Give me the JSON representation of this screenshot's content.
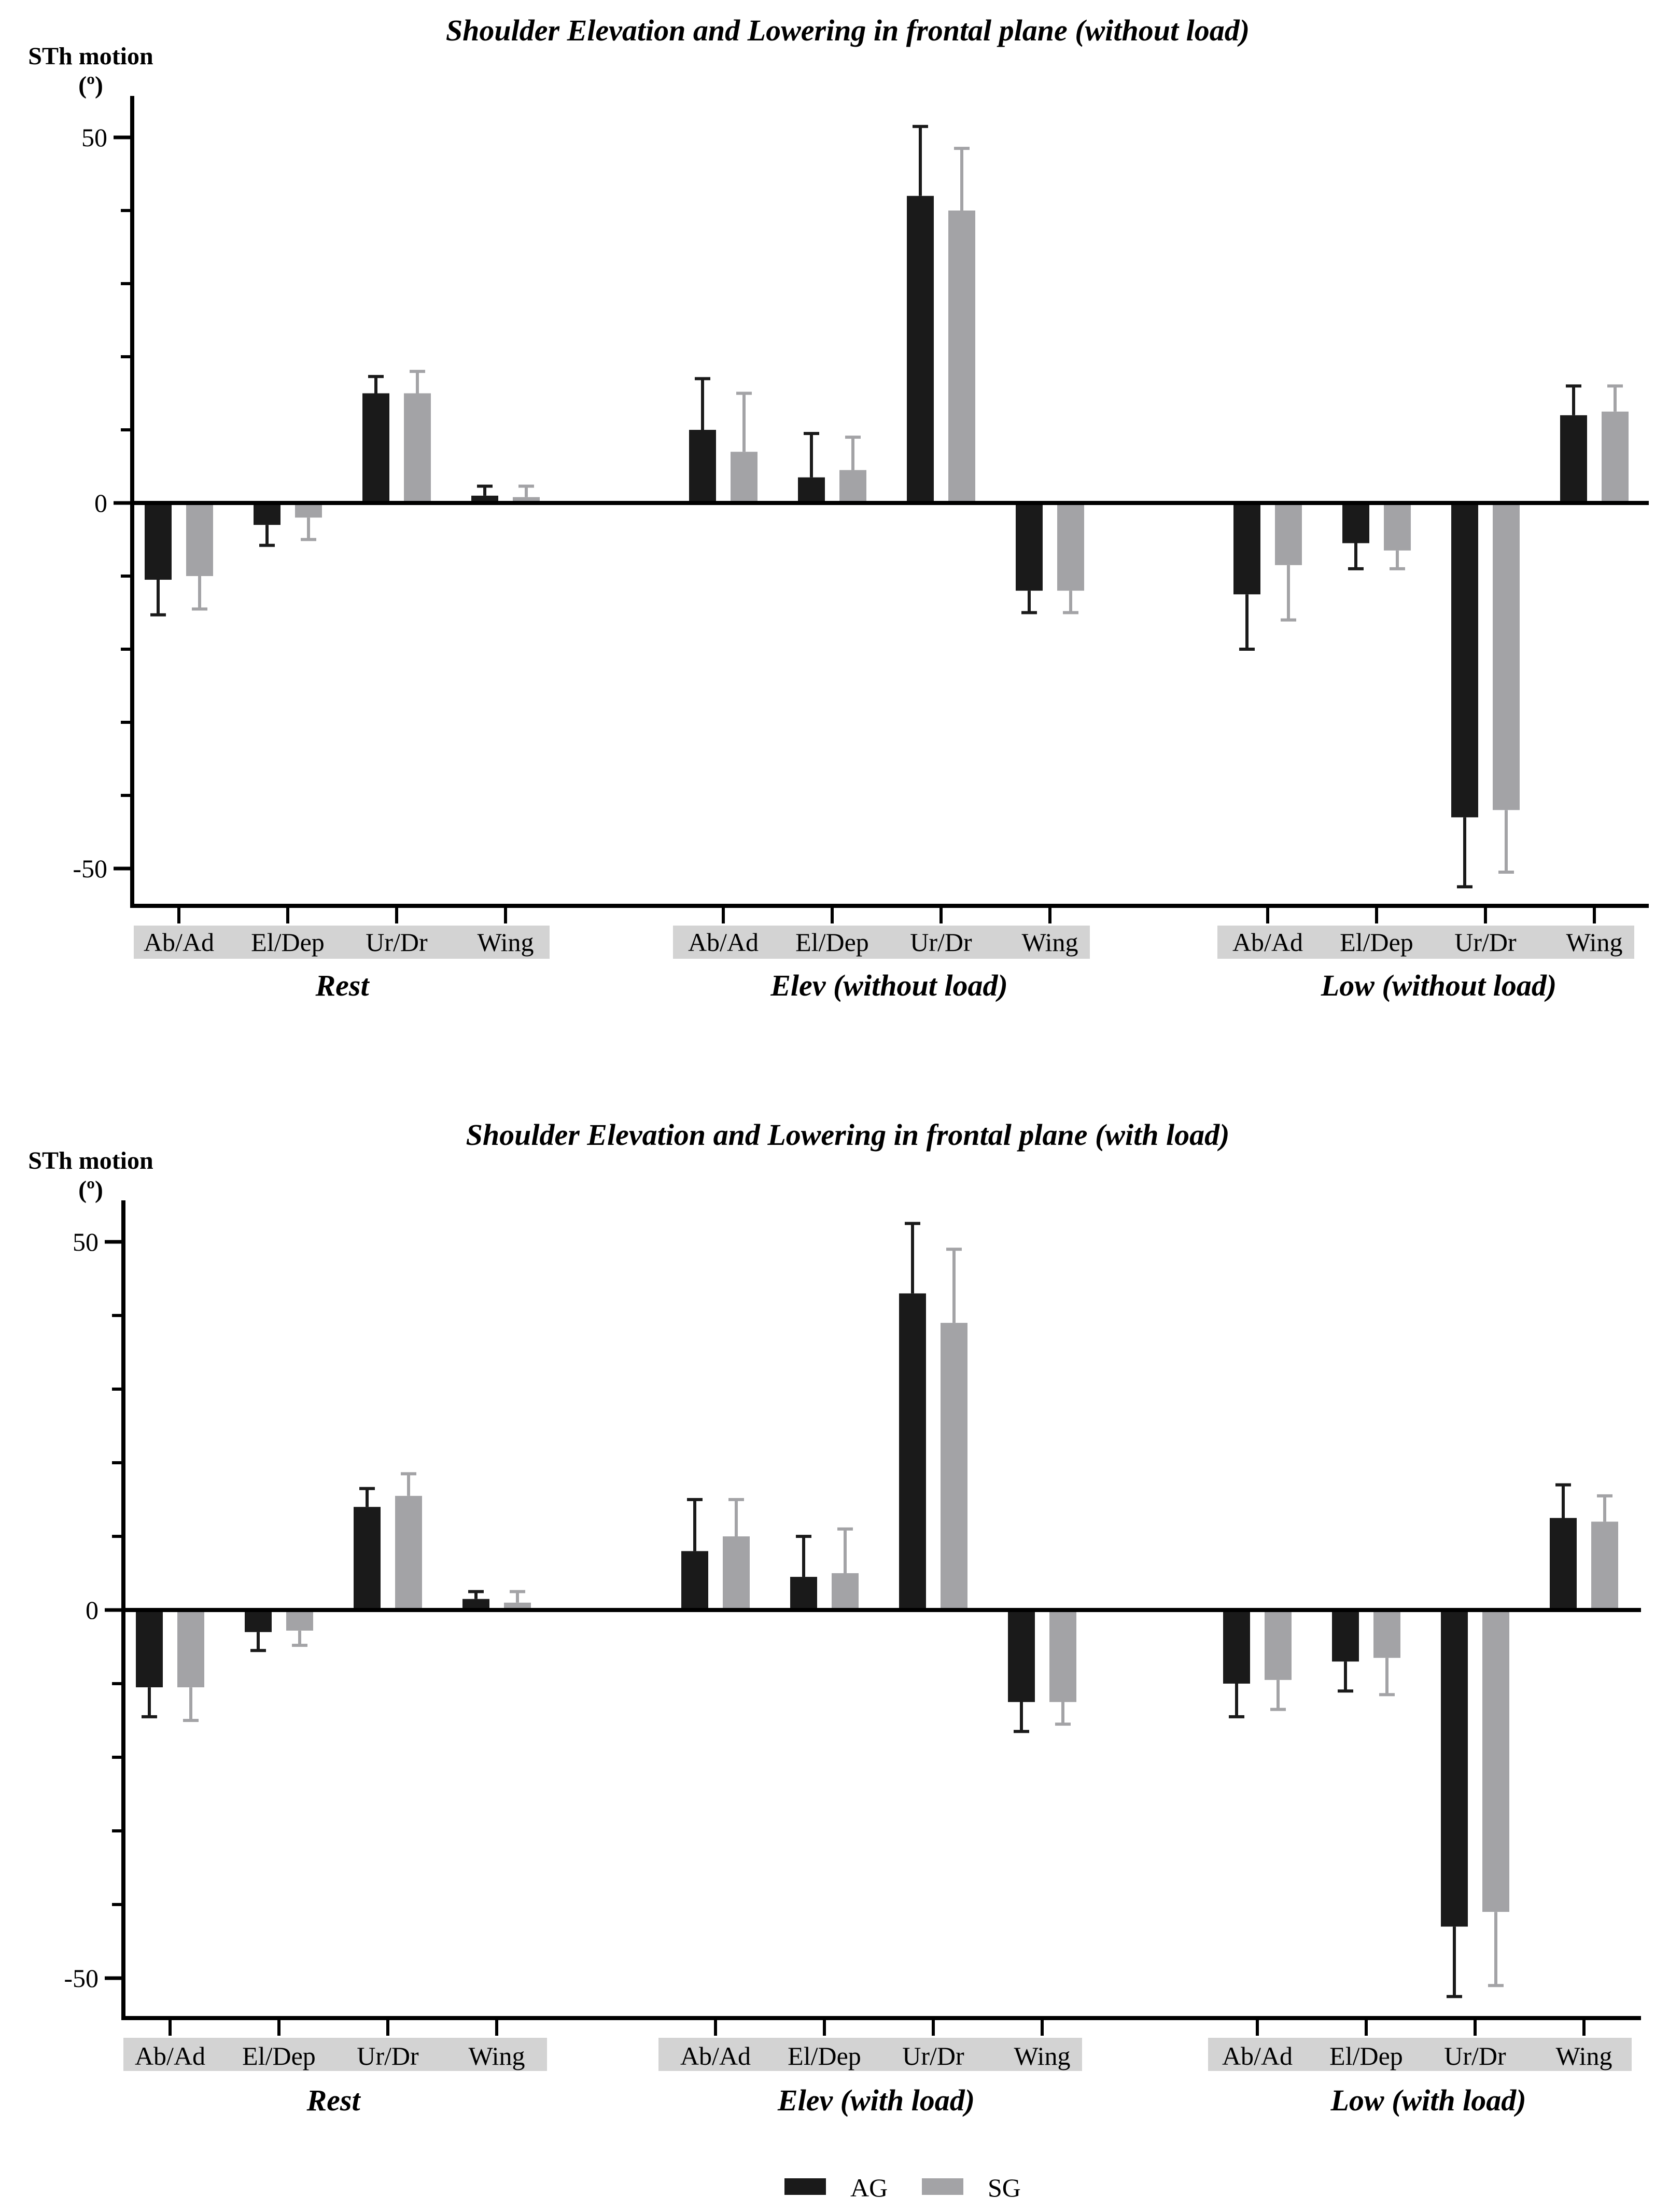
{
  "chart_data": [
    {
      "type": "bar",
      "title": "Shoulder Elevation and Lowering in frontal plane (without load)",
      "ylabel_line1": "STh motion",
      "ylabel_line2": "(º)",
      "ylim": [
        -55,
        55
      ],
      "yticks": [
        -50,
        0,
        50
      ],
      "groups": [
        {
          "label": "Rest",
          "categories": [
            "Ab/Ad",
            "El/Dep",
            "Ur/Dr",
            "Wing"
          ],
          "series": [
            {
              "name": "AG",
              "values": [
                -10.5,
                -3,
                15,
                1
              ],
              "errors": [
                4.8,
                2.8,
                2.3,
                1.3
              ]
            },
            {
              "name": "SG",
              "values": [
                -10,
                -2,
                15,
                0.8
              ],
              "errors": [
                4.5,
                3,
                3,
                1.5
              ]
            }
          ]
        },
        {
          "label": "Elev (without load)",
          "categories": [
            "Ab/Ad",
            "El/Dep",
            "Ur/Dr",
            "Wing"
          ],
          "series": [
            {
              "name": "AG",
              "values": [
                10,
                3.5,
                42,
                -12
              ],
              "errors": [
                7,
                6,
                9.5,
                3
              ]
            },
            {
              "name": "SG",
              "values": [
                7,
                4.5,
                40,
                -12
              ],
              "errors": [
                8,
                4.5,
                8.5,
                3
              ]
            }
          ]
        },
        {
          "label": "Low (without load)",
          "categories": [
            "Ab/Ad",
            "El/Dep",
            "Ur/Dr",
            "Wing"
          ],
          "series": [
            {
              "name": "AG",
              "values": [
                -12.5,
                -5.5,
                -43,
                12
              ],
              "errors": [
                7.5,
                3.5,
                9.5,
                4
              ]
            },
            {
              "name": "SG",
              "values": [
                -8.5,
                -6.5,
                -42,
                12.5
              ],
              "errors": [
                7.5,
                2.5,
                8.5,
                3.5
              ]
            }
          ]
        }
      ]
    },
    {
      "type": "bar",
      "title": "Shoulder Elevation and Lowering in frontal plane (with load)",
      "ylabel_line1": "STh motion",
      "ylabel_line2": "(º)",
      "ylim": [
        -55,
        55
      ],
      "yticks": [
        -50,
        0,
        50
      ],
      "groups": [
        {
          "label": "Rest",
          "categories": [
            "Ab/Ad",
            "El/Dep",
            "Ur/Dr",
            "Wing"
          ],
          "series": [
            {
              "name": "AG",
              "values": [
                -10.5,
                -3,
                14,
                1.5
              ],
              "errors": [
                4,
                2.5,
                2.5,
                1
              ]
            },
            {
              "name": "SG",
              "values": [
                -10.5,
                -2.8,
                15.5,
                1
              ],
              "errors": [
                4.5,
                2,
                3,
                1.5
              ]
            }
          ]
        },
        {
          "label": "Elev (with load)",
          "categories": [
            "Ab/Ad",
            "El/Dep",
            "Ur/Dr",
            "Wing"
          ],
          "series": [
            {
              "name": "AG",
              "values": [
                8,
                4.5,
                43,
                -12.5
              ],
              "errors": [
                7,
                5.5,
                9.5,
                4
              ]
            },
            {
              "name": "SG",
              "values": [
                10,
                5,
                39,
                -12.5
              ],
              "errors": [
                5,
                6,
                10,
                3
              ]
            }
          ]
        },
        {
          "label": "Low (with load)",
          "categories": [
            "Ab/Ad",
            "El/Dep",
            "Ur/Dr",
            "Wing"
          ],
          "series": [
            {
              "name": "AG",
              "values": [
                -10,
                -7,
                -43,
                12.5
              ],
              "errors": [
                4.5,
                4,
                9.5,
                4.5
              ]
            },
            {
              "name": "SG",
              "values": [
                -9.5,
                -6.5,
                -41,
                12
              ],
              "errors": [
                4,
                5,
                10,
                3.5
              ]
            }
          ]
        }
      ]
    }
  ],
  "legend": [
    {
      "name": "AG",
      "color": "#1a1a1a"
    },
    {
      "name": "SG",
      "color": "#a3a3a6"
    }
  ],
  "colors": {
    "axis": "#000000",
    "category_bg": "#d3d3d3"
  }
}
